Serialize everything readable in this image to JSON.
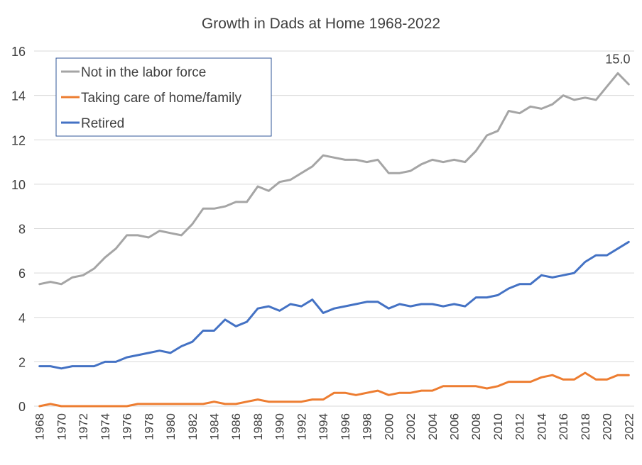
{
  "chart_data": {
    "type": "line",
    "title": "Growth in Dads at Home 1968-2022",
    "xlabel": "",
    "ylabel": "",
    "ylim": [
      0,
      16
    ],
    "yticks": [
      "0",
      "2",
      "4",
      "6",
      "8",
      "10",
      "12",
      "14",
      "16"
    ],
    "x": [
      1968,
      1969,
      1970,
      1971,
      1972,
      1973,
      1974,
      1975,
      1976,
      1977,
      1978,
      1979,
      1980,
      1981,
      1982,
      1983,
      1984,
      1985,
      1986,
      1987,
      1988,
      1989,
      1990,
      1991,
      1992,
      1993,
      1994,
      1995,
      1996,
      1997,
      1998,
      1999,
      2000,
      2001,
      2002,
      2003,
      2004,
      2005,
      2006,
      2007,
      2008,
      2009,
      2010,
      2011,
      2012,
      2013,
      2014,
      2015,
      2016,
      2017,
      2018,
      2019,
      2020,
      2021,
      2022
    ],
    "xtick_labels": [
      "1968",
      "1970",
      "1972",
      "1974",
      "1976",
      "1978",
      "1980",
      "1982",
      "1984",
      "1986",
      "1988",
      "1990",
      "1992",
      "1994",
      "1996",
      "1998",
      "2000",
      "2002",
      "2004",
      "2006",
      "2008",
      "2010",
      "2012",
      "2014",
      "2016",
      "2018",
      "2020",
      "2022"
    ],
    "grid": true,
    "legend_position": "top-left",
    "series": [
      {
        "name": "Not in the labor force",
        "color": "#A5A5A5",
        "values": [
          5.5,
          5.6,
          5.5,
          5.8,
          5.9,
          6.2,
          6.7,
          7.1,
          7.7,
          7.7,
          7.6,
          7.9,
          7.8,
          7.7,
          8.2,
          8.9,
          8.9,
          9.0,
          9.2,
          9.2,
          9.9,
          9.7,
          10.1,
          10.2,
          10.5,
          10.8,
          11.3,
          11.2,
          11.1,
          11.1,
          11.0,
          11.1,
          10.5,
          10.5,
          10.6,
          10.9,
          11.1,
          11.0,
          11.1,
          11.0,
          11.5,
          12.2,
          12.4,
          13.3,
          13.2,
          13.5,
          13.4,
          13.6,
          14.0,
          13.8,
          13.9,
          13.8,
          14.4,
          15.0,
          14.5
        ]
      },
      {
        "name": "Taking care of home/family",
        "color": "#ED7D31",
        "values": [
          0.0,
          0.1,
          0.0,
          0.0,
          0.0,
          0.0,
          0.0,
          0.0,
          0.0,
          0.1,
          0.1,
          0.1,
          0.1,
          0.1,
          0.1,
          0.1,
          0.2,
          0.1,
          0.1,
          0.2,
          0.3,
          0.2,
          0.2,
          0.2,
          0.2,
          0.3,
          0.3,
          0.6,
          0.6,
          0.5,
          0.6,
          0.7,
          0.5,
          0.6,
          0.6,
          0.7,
          0.7,
          0.9,
          0.9,
          0.9,
          0.9,
          0.8,
          0.9,
          1.1,
          1.1,
          1.1,
          1.3,
          1.4,
          1.2,
          1.2,
          1.5,
          1.2,
          1.2,
          1.4,
          1.4
        ]
      },
      {
        "name": "Retired",
        "color": "#4472C4",
        "values": [
          1.8,
          1.8,
          1.7,
          1.8,
          1.8,
          1.8,
          2.0,
          2.0,
          2.2,
          2.3,
          2.4,
          2.5,
          2.4,
          2.7,
          2.9,
          3.4,
          3.4,
          3.9,
          3.6,
          3.8,
          4.4,
          4.5,
          4.3,
          4.6,
          4.5,
          4.8,
          4.2,
          4.4,
          4.5,
          4.6,
          4.7,
          4.7,
          4.4,
          4.6,
          4.5,
          4.6,
          4.6,
          4.5,
          4.6,
          4.5,
          4.9,
          4.9,
          5.0,
          5.3,
          5.5,
          5.5,
          5.9,
          5.8,
          5.9,
          6.0,
          6.5,
          6.8,
          6.8,
          7.1,
          7.4
        ]
      }
    ],
    "annotations": [
      {
        "series": "Not in the labor force",
        "x": 2021,
        "label": "15.0"
      }
    ]
  }
}
